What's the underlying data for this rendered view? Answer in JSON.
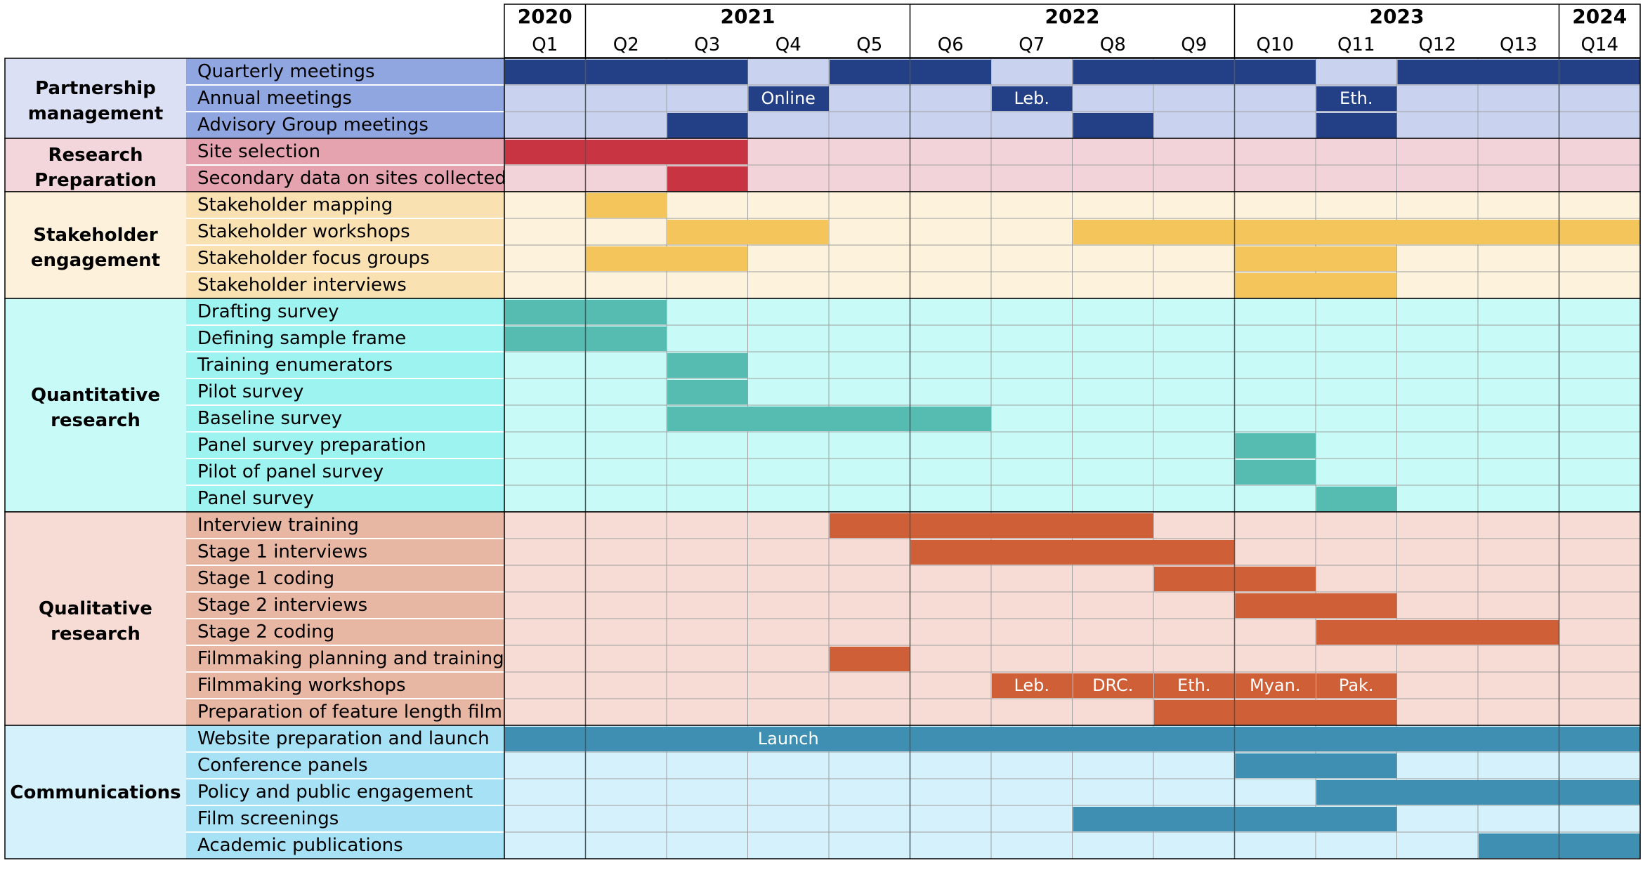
{
  "years": [
    {
      "label": "2020",
      "start": 0,
      "span": 1
    },
    {
      "label": "2021",
      "start": 1,
      "span": 4
    },
    {
      "label": "2022",
      "start": 5,
      "span": 4
    },
    {
      "label": "2023",
      "start": 9,
      "span": 4
    },
    {
      "label": "2024",
      "start": 13,
      "span": 1
    }
  ],
  "quarters": [
    "Q1",
    "Q2",
    "Q3",
    "Q4",
    "Q5",
    "Q6",
    "Q7",
    "Q8",
    "Q9",
    "Q10",
    "Q11",
    "Q12",
    "Q13",
    "Q14"
  ],
  "groups": [
    {
      "label": "Partnership management",
      "key": "partnership-management",
      "colors": {
        "group_bg": "#dbe0f4",
        "task_bg": "#8fa6e0",
        "cell_bg": "#c9d3ef",
        "bar": "#233f85"
      },
      "tasks": [
        {
          "label": "Quarterly meetings",
          "bars": [
            {
              "start": 0,
              "end": 3
            },
            {
              "start": 4,
              "end": 6
            },
            {
              "start": 7,
              "end": 10
            },
            {
              "start": 11,
              "end": 14
            }
          ]
        },
        {
          "label": "Annual meetings",
          "bars": [
            {
              "start": 3,
              "end": 4,
              "text": "Online"
            },
            {
              "start": 6,
              "end": 7,
              "text": "Leb."
            },
            {
              "start": 10,
              "end": 11,
              "text": "Eth."
            }
          ]
        },
        {
          "label": "Advisory Group meetings",
          "bars": [
            {
              "start": 2,
              "end": 3
            },
            {
              "start": 7,
              "end": 8
            },
            {
              "start": 10,
              "end": 11
            }
          ]
        }
      ]
    },
    {
      "label": "Research Preparation",
      "key": "research-preparation",
      "colors": {
        "group_bg": "#f3d6dc",
        "task_bg": "#e4a3ae",
        "cell_bg": "#f2d3d9",
        "bar": "#c93443"
      },
      "tasks": [
        {
          "label": "Site selection",
          "bars": [
            {
              "start": 0,
              "end": 3
            }
          ]
        },
        {
          "label": "Secondary data on sites collected",
          "bars": [
            {
              "start": 2,
              "end": 3
            }
          ]
        }
      ]
    },
    {
      "label": "Stakeholder engagement",
      "key": "stakeholder-engagement",
      "colors": {
        "group_bg": "#fdf1dc",
        "task_bg": "#f9e1b1",
        "cell_bg": "#fdf2db",
        "bar": "#f4c55a"
      },
      "tasks": [
        {
          "label": "Stakeholder mapping",
          "bars": [
            {
              "start": 1,
              "end": 2
            }
          ]
        },
        {
          "label": "Stakeholder workshops",
          "bars": [
            {
              "start": 2,
              "end": 4
            },
            {
              "start": 7,
              "end": 14
            }
          ]
        },
        {
          "label": "Stakeholder focus groups",
          "bars": [
            {
              "start": 1,
              "end": 3
            },
            {
              "start": 9,
              "end": 11
            }
          ]
        },
        {
          "label": "Stakeholder interviews",
          "bars": [
            {
              "start": 9,
              "end": 11
            }
          ]
        }
      ]
    },
    {
      "label": "Quantitative research",
      "key": "quantitative-research",
      "colors": {
        "group_bg": "#c8fbf8",
        "task_bg": "#9cf3f0",
        "cell_bg": "#c8fbf8",
        "bar": "#56bbb0"
      },
      "tasks": [
        {
          "label": "Drafting survey",
          "bars": [
            {
              "start": 0,
              "end": 2
            }
          ]
        },
        {
          "label": "Defining sample frame",
          "bars": [
            {
              "start": 0,
              "end": 2
            }
          ]
        },
        {
          "label": "Training enumerators",
          "bars": [
            {
              "start": 2,
              "end": 3
            }
          ]
        },
        {
          "label": "Pilot survey",
          "bars": [
            {
              "start": 2,
              "end": 3
            }
          ]
        },
        {
          "label": "Baseline survey",
          "bars": [
            {
              "start": 2,
              "end": 6
            }
          ]
        },
        {
          "label": "Panel survey preparation",
          "bars": [
            {
              "start": 9,
              "end": 10
            }
          ]
        },
        {
          "label": "Pilot of panel survey",
          "bars": [
            {
              "start": 9,
              "end": 10
            }
          ]
        },
        {
          "label": "Panel survey",
          "bars": [
            {
              "start": 10,
              "end": 11
            }
          ]
        }
      ]
    },
    {
      "label": "Qualitative research",
      "key": "qualitative-research",
      "colors": {
        "group_bg": "#f6dcd4",
        "task_bg": "#e8b7a4",
        "cell_bg": "#f6dcd4",
        "bar": "#cf5f37"
      },
      "tasks": [
        {
          "label": "Interview training",
          "bars": [
            {
              "start": 4,
              "end": 8
            }
          ]
        },
        {
          "label": "Stage 1 interviews",
          "bars": [
            {
              "start": 5,
              "end": 9
            }
          ]
        },
        {
          "label": "Stage 1 coding",
          "bars": [
            {
              "start": 8,
              "end": 10
            }
          ]
        },
        {
          "label": "Stage 2 interviews",
          "bars": [
            {
              "start": 9,
              "end": 11
            }
          ]
        },
        {
          "label": "Stage 2 coding",
          "bars": [
            {
              "start": 10,
              "end": 13
            }
          ]
        },
        {
          "label": "Filmmaking planning and training",
          "bars": [
            {
              "start": 4,
              "end": 5
            }
          ]
        },
        {
          "label": "Filmmaking workshops",
          "bars": [
            {
              "start": 6,
              "end": 7,
              "text": "Leb."
            },
            {
              "start": 7,
              "end": 8,
              "text": "DRC."
            },
            {
              "start": 8,
              "end": 9,
              "text": "Eth."
            },
            {
              "start": 9,
              "end": 10,
              "text": "Myan."
            },
            {
              "start": 10,
              "end": 11,
              "text": "Pak."
            }
          ]
        },
        {
          "label": "Preparation of feature length film",
          "bars": [
            {
              "start": 8,
              "end": 11
            }
          ]
        }
      ]
    },
    {
      "label": "Communications",
      "key": "communications",
      "colors": {
        "group_bg": "#d5f1fc",
        "task_bg": "#a6e1f5",
        "cell_bg": "#d5f1fc",
        "bar": "#3f8fb2"
      },
      "tasks": [
        {
          "label": "Website preparation and launch",
          "bars": [
            {
              "start": 0,
              "end": 14,
              "text": "Launch",
              "text_at": 3
            }
          ]
        },
        {
          "label": "Conference panels",
          "bars": [
            {
              "start": 9,
              "end": 11
            }
          ]
        },
        {
          "label": "Policy and public engagement",
          "bars": [
            {
              "start": 10,
              "end": 14
            }
          ]
        },
        {
          "label": "Film screenings",
          "bars": [
            {
              "start": 7,
              "end": 11
            }
          ]
        },
        {
          "label": "Academic publications",
          "bars": [
            {
              "start": 12,
              "end": 14
            }
          ]
        }
      ]
    }
  ]
}
